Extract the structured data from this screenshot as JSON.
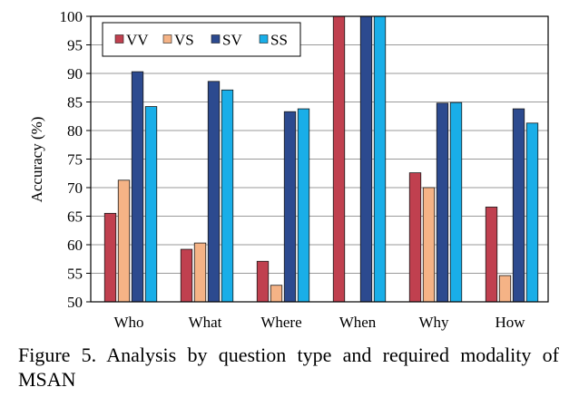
{
  "chart_data": {
    "type": "bar",
    "title": "",
    "xlabel": "",
    "ylabel": "Accuracy (%)",
    "ylim": [
      50,
      100
    ],
    "yticks": [
      50,
      55,
      60,
      65,
      70,
      75,
      80,
      85,
      90,
      95,
      100
    ],
    "grid": true,
    "legend_position": "top-left",
    "categories": [
      "Who",
      "What",
      "Where",
      "When",
      "Why",
      "How"
    ],
    "series": [
      {
        "name": "VV",
        "color": "#c0404f",
        "values": [
          65.5,
          59.2,
          57.1,
          100,
          72.6,
          66.6
        ]
      },
      {
        "name": "VS",
        "color": "#f5b386",
        "values": [
          71.3,
          60.3,
          52.9,
          50.0,
          70.0,
          54.6
        ]
      },
      {
        "name": "SV",
        "color": "#2c4a8f",
        "values": [
          90.3,
          88.6,
          83.3,
          100,
          84.8,
          83.8
        ]
      },
      {
        "name": "SS",
        "color": "#19aee8",
        "values": [
          84.2,
          87.1,
          83.8,
          100,
          84.9,
          81.3
        ]
      }
    ]
  },
  "caption": "Figure 5. Analysis by question type and required modality of MSAN"
}
